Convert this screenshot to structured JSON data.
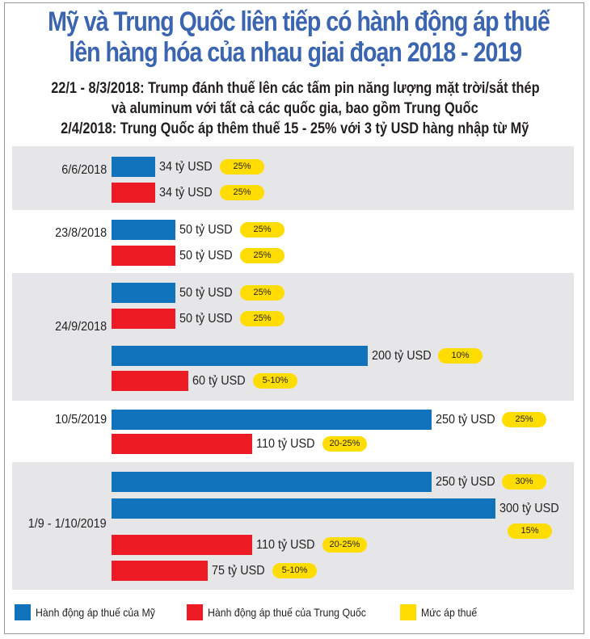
{
  "title_lines": [
    "Mỹ và Trung Quốc liên tiếp có hành động áp thuế",
    "lên hàng hóa của nhau giai đoạn 2018 - 2019"
  ],
  "subtitle_lines": [
    "22/1 - 8/3/2018: Trump đánh thuế lên các tấm pin năng lượng mặt trời/sắt thép",
    "và aluminum với tất cả các quốc gia, bao gồm Trung Quốc",
    "2/4/2018: Trung Quốc áp thêm thuế 15 - 25% với 3 tỷ USD hàng nhập từ Mỹ"
  ],
  "colors": {
    "us": "#1173bb",
    "china": "#ed1c24",
    "tariff_rate": "#ffdd00",
    "title": "#3b64b1",
    "band_gray": "#e6e6e8"
  },
  "chart_data": {
    "type": "bar",
    "orientation": "horizontal",
    "title": "Mỹ và Trung Quốc liên tiếp có hành động áp thuế lên hàng hóa của nhau giai đoạn 2018 - 2019",
    "unit": "tỷ USD",
    "xlim": [
      0,
      300
    ],
    "groups": [
      {
        "date": "6/6/2018",
        "bars": [
          {
            "side": "us",
            "value": 34,
            "label": "34 tỷ USD",
            "rate": "25%"
          },
          {
            "side": "china",
            "value": 34,
            "label": "34 tỷ USD",
            "rate": "25%"
          }
        ]
      },
      {
        "date": "23/8/2018",
        "bars": [
          {
            "side": "us",
            "value": 50,
            "label": "50 tỷ USD",
            "rate": "25%"
          },
          {
            "side": "china",
            "value": 50,
            "label": "50 tỷ USD",
            "rate": "25%"
          }
        ]
      },
      {
        "date": "24/9/2018",
        "bars": [
          {
            "side": "us",
            "value": 50,
            "label": "50 tỷ USD",
            "rate": "25%"
          },
          {
            "side": "china",
            "value": 50,
            "label": "50 tỷ USD",
            "rate": "25%"
          },
          {
            "side": "us",
            "value": 200,
            "label": "200 tỷ USD",
            "rate": "10%"
          },
          {
            "side": "china",
            "value": 60,
            "label": "60 tỷ USD",
            "rate": "5-10%"
          }
        ]
      },
      {
        "date": "10/5/2019",
        "bars": [
          {
            "side": "us",
            "value": 250,
            "label": "250 tỷ USD",
            "rate": "25%"
          },
          {
            "side": "china",
            "value": 110,
            "label": "110 tỷ USD",
            "rate": "20-25%"
          }
        ]
      },
      {
        "date": "1/9 - 1/10/2019",
        "bars": [
          {
            "side": "us",
            "value": 250,
            "label": "250 tỷ USD",
            "rate": "30%"
          },
          {
            "side": "us",
            "value": 300,
            "label": "300 tỷ USD",
            "rate": "15%"
          },
          {
            "side": "china",
            "value": 110,
            "label": "110 tỷ USD",
            "rate": "20-25%"
          },
          {
            "side": "china",
            "value": 75,
            "label": "75 tỷ USD",
            "rate": "5-10%"
          }
        ]
      }
    ],
    "legend": [
      {
        "key": "us",
        "label": "Hành động áp thuế của Mỹ"
      },
      {
        "key": "china",
        "label": "Hành động áp thuế của Trung Quốc"
      },
      {
        "key": "tariff_rate",
        "label": "Mức áp thuế"
      }
    ],
    "legend_position": "bottom"
  }
}
